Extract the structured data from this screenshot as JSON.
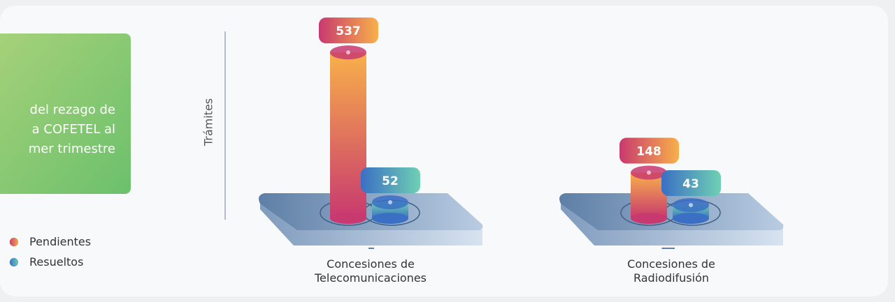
{
  "chart_data": {
    "type": "bar",
    "y_label": "Trámites",
    "annotation": [
      "del rezago de",
      "a COFETEL al",
      "mer trimestre"
    ],
    "categories": [
      "Concesiones de Telecomunicaciones",
      "Concesiones de Radiodifusión"
    ],
    "series": [
      {
        "name": "Pendientes",
        "color": [
          "#c8396f",
          "#f8b04a"
        ],
        "values": [
          537,
          148
        ]
      },
      {
        "name": "Resueltos",
        "color": [
          "#3a6fc4",
          "#6fd0b3"
        ],
        "values": [
          52,
          43
        ]
      }
    ],
    "ylim": [
      0,
      560
    ]
  }
}
